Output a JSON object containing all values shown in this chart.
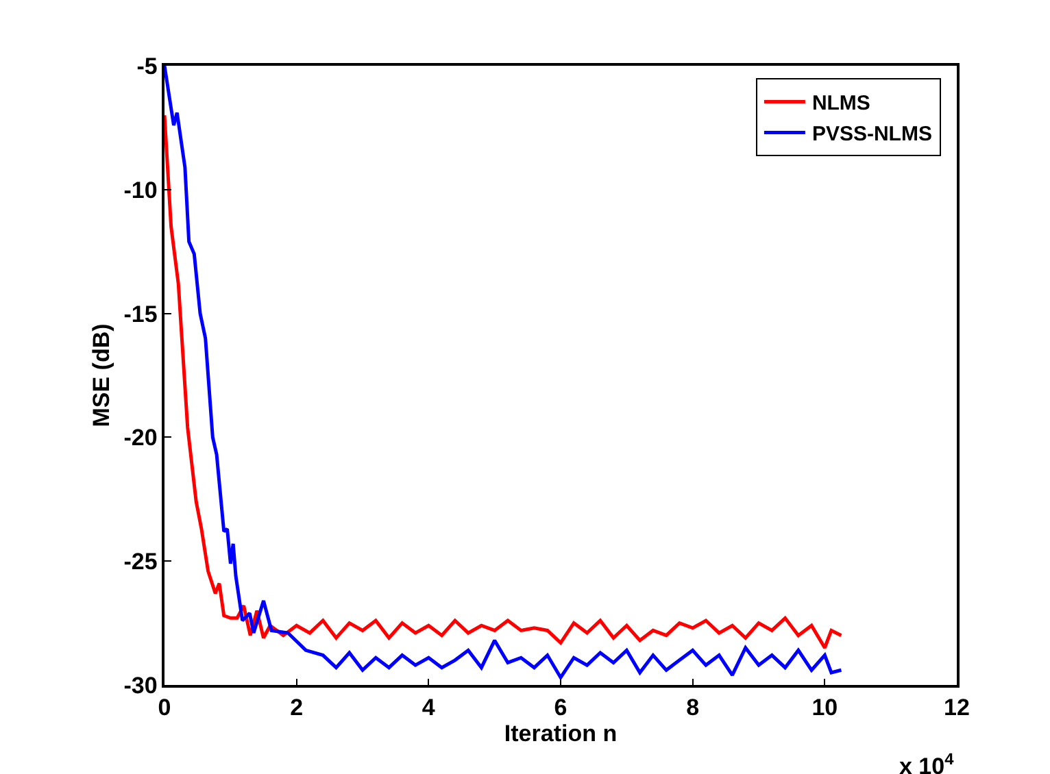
{
  "chart_data": {
    "type": "line",
    "xlabel": "Iteration n",
    "ylabel": "MSE (dB)",
    "annotations": [
      "x 10$^{4}$"
    ],
    "xlim": [
      0,
      12
    ],
    "xticks": [
      0,
      2,
      4,
      6,
      8,
      10,
      12
    ],
    "ylim": [
      -30,
      -5
    ],
    "yticks": [
      -30,
      -25,
      -20,
      -15,
      -10,
      -5
    ],
    "legend": "top right",
    "marker": "none",
    "line_style": "solid",
    "series": [
      {
        "name": "NLMS",
        "color": "#ff0000",
        "x": [
          0,
          0.1,
          0.21,
          0.35,
          0.48,
          0.56,
          0.66,
          0.77,
          0.83,
          0.9,
          1.0,
          1.1,
          1.2,
          1.3,
          1.4,
          1.5,
          1.6,
          1.8,
          2.0,
          2.2,
          2.4,
          2.6,
          2.8,
          3.0,
          3.2,
          3.4,
          3.6,
          3.8,
          4.0,
          4.2,
          4.4,
          4.6,
          4.8,
          5.0,
          5.2,
          5.4,
          5.6,
          5.8,
          6.0,
          6.2,
          6.4,
          6.6,
          6.8,
          7.0,
          7.2,
          7.4,
          7.6,
          7.8,
          8.0,
          8.2,
          8.4,
          8.6,
          8.8,
          9.0,
          9.2,
          9.4,
          9.6,
          9.8,
          10.0,
          10.1,
          10.25
        ],
        "values": [
          -7,
          -11.5,
          -13.8,
          -19.6,
          -22.6,
          -23.7,
          -25.4,
          -26.3,
          -25.9,
          -27.2,
          -27.3,
          -27.3,
          -26.8,
          -28.0,
          -27.0,
          -28.1,
          -27.6,
          -28.0,
          -27.6,
          -27.9,
          -27.4,
          -28.1,
          -27.5,
          -27.8,
          -27.4,
          -28.1,
          -27.5,
          -27.9,
          -27.6,
          -28.0,
          -27.4,
          -27.9,
          -27.6,
          -27.8,
          -27.4,
          -27.8,
          -27.7,
          -27.8,
          -28.3,
          -27.5,
          -27.9,
          -27.4,
          -28.1,
          -27.6,
          -28.2,
          -27.8,
          -28.0,
          -27.5,
          -27.7,
          -27.4,
          -27.9,
          -27.6,
          -28.1,
          -27.5,
          -27.8,
          -27.3,
          -28.0,
          -27.6,
          -28.5,
          -27.8,
          -28.0
        ]
      },
      {
        "name": "PVSS-NLMS",
        "color": "#0000ff",
        "x": [
          0,
          0.14,
          0.19,
          0.31,
          0.37,
          0.45,
          0.54,
          0.62,
          0.73,
          0.79,
          0.9,
          0.95,
          1.0,
          1.04,
          1.08,
          1.18,
          1.29,
          1.35,
          1.5,
          1.62,
          1.87,
          2.14,
          2.4,
          2.6,
          2.8,
          3.0,
          3.2,
          3.4,
          3.6,
          3.8,
          4.0,
          4.2,
          4.4,
          4.6,
          4.8,
          5.0,
          5.2,
          5.4,
          5.6,
          5.8,
          6.0,
          6.2,
          6.4,
          6.6,
          6.8,
          7.0,
          7.2,
          7.4,
          7.6,
          7.8,
          8.0,
          8.2,
          8.4,
          8.6,
          8.8,
          9.0,
          9.2,
          9.4,
          9.6,
          9.8,
          10.0,
          10.1,
          10.25
        ],
        "values": [
          -5,
          -7.4,
          -6.9,
          -9.1,
          -12.1,
          -12.6,
          -15.0,
          -16.0,
          -20.0,
          -20.7,
          -23.8,
          -23.7,
          -25.1,
          -24.3,
          -25.6,
          -27.4,
          -27.1,
          -27.9,
          -26.6,
          -27.8,
          -27.9,
          -28.6,
          -28.8,
          -29.3,
          -28.7,
          -29.4,
          -28.9,
          -29.3,
          -28.8,
          -29.2,
          -28.9,
          -29.3,
          -29.0,
          -28.6,
          -29.3,
          -28.2,
          -29.1,
          -28.9,
          -29.3,
          -28.8,
          -29.7,
          -28.9,
          -29.2,
          -28.7,
          -29.1,
          -28.6,
          -29.5,
          -28.8,
          -29.4,
          -29.0,
          -28.6,
          -29.2,
          -28.8,
          -29.6,
          -28.5,
          -29.2,
          -28.8,
          -29.3,
          -28.6,
          -29.4,
          -28.8,
          -29.5,
          -29.4
        ]
      }
    ]
  }
}
